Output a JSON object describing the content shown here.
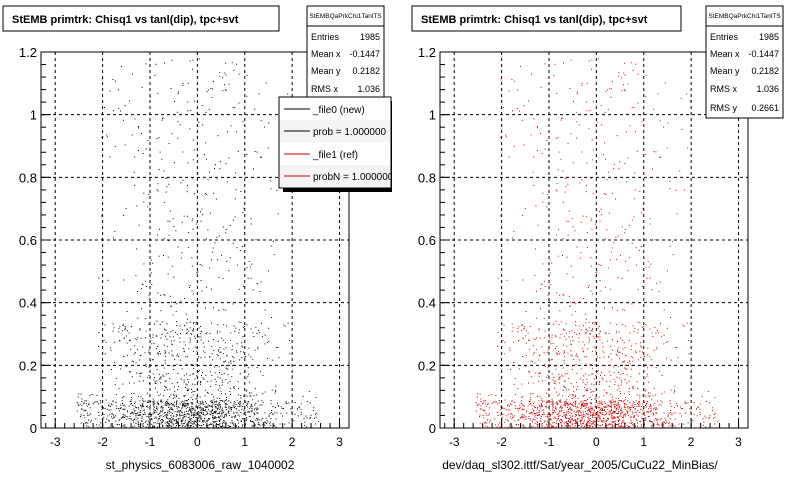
{
  "panels": [
    {
      "title": "StEMB primtrk: Chisq1 vs tanl(dip), tpc+svt",
      "stats": {
        "name": "StEMBQaPrkChi1TanlTS",
        "rows": [
          {
            "label": "Entries",
            "value": "1985"
          },
          {
            "label": "Mean x",
            "value": "-0.1447"
          },
          {
            "label": "Mean y",
            "value": "0.2182"
          },
          {
            "label": "RMS x",
            "value": "1.036"
          }
        ]
      },
      "legend": {
        "entries": [
          {
            "label": "_file0 (new)",
            "color": "#000000"
          },
          {
            "label": "prob = 1.000000",
            "color": "#000000"
          },
          {
            "label": "_file1 (ref)",
            "color": "#cc0000"
          },
          {
            "label": "probN = 1.000000",
            "color": "#cc0000"
          }
        ]
      },
      "xtitle": "st_physics_6083006_raw_1040002"
    },
    {
      "title": "StEMB primtrk: Chisq1 vs tanl(dip), tpc+svt",
      "stats": {
        "name": "StEMBQaPrkChi1TanlTS",
        "rows": [
          {
            "label": "Entries",
            "value": "1985"
          },
          {
            "label": "Mean x",
            "value": "-0.1447"
          },
          {
            "label": "Mean y",
            "value": "0.2182"
          },
          {
            "label": "RMS x",
            "value": "1.036"
          },
          {
            "label": "RMS y",
            "value": "0.2661"
          }
        ]
      },
      "xtitle": "dev/daq_sl302.ittf/Sat/year_2005/CuCu22_MinBias/"
    }
  ],
  "chart_data": [
    {
      "type": "scatter",
      "title": "StEMB primtrk: Chisq1 vs tanl(dip), tpc+svt",
      "xlabel": "st_physics_6083006_raw_1040002",
      "ylabel": "",
      "xlim": [
        -3.3,
        3.2
      ],
      "ylim": [
        0,
        1.2
      ],
      "xticks": [
        -3,
        -2,
        -1,
        0,
        1,
        2,
        3
      ],
      "yticks": [
        0,
        0.2,
        0.4,
        0.6,
        0.8,
        1,
        1.2
      ],
      "grid": true,
      "legend_position": "top-right",
      "series": [
        {
          "name": "_file0 (new)",
          "color": "#000000",
          "entries": 1985
        }
      ],
      "stats": {
        "entries": 1985,
        "mean_x": -0.1447,
        "mean_y": 0.2182,
        "rms_x": 1.036
      }
    },
    {
      "type": "scatter",
      "title": "StEMB primtrk: Chisq1 vs tanl(dip), tpc+svt",
      "xlabel": "dev/daq_sl302.ittf/Sat/year_2005/CuCu22_MinBias/",
      "ylabel": "",
      "xlim": [
        -3.3,
        3.2
      ],
      "ylim": [
        0,
        1.2
      ],
      "xticks": [
        -3,
        -2,
        -1,
        0,
        1,
        2,
        3
      ],
      "yticks": [
        0,
        0.2,
        0.4,
        0.6,
        0.8,
        1,
        1.2
      ],
      "grid": true,
      "series": [
        {
          "name": "_file1 (ref)",
          "color": "#cc0000",
          "entries": 1985
        }
      ],
      "stats": {
        "entries": 1985,
        "mean_x": -0.1447,
        "mean_y": 0.2182,
        "rms_x": 1.036,
        "rms_y": 0.2661
      }
    }
  ]
}
